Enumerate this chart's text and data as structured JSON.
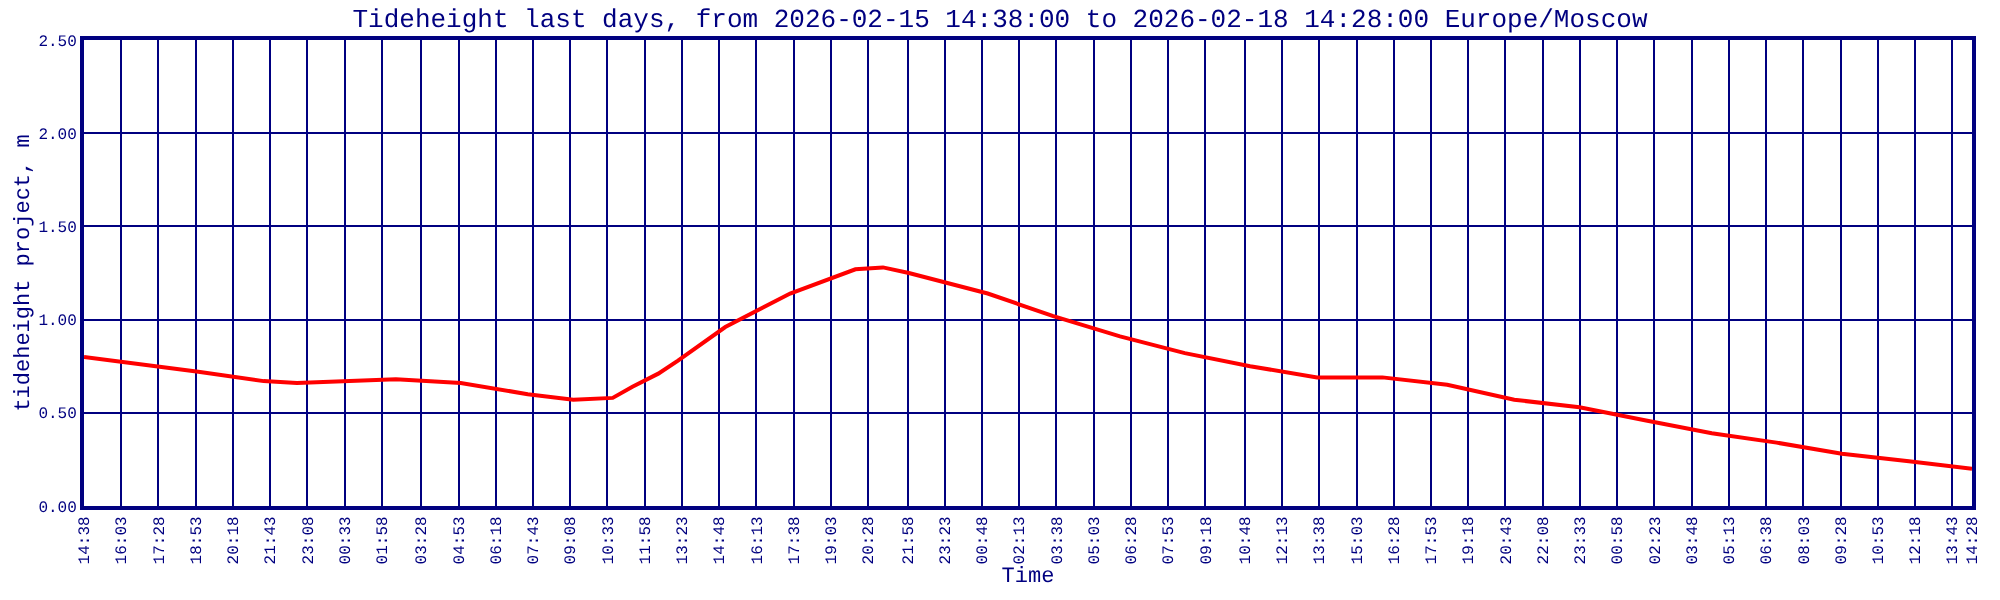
{
  "chart_data": {
    "type": "line",
    "title": "Tideheight last days, from 2026-02-15 14:38:00 to 2026-02-18 14:28:00 Europe/Moscow",
    "xlabel": "Time",
    "ylabel": "tideheight project, m",
    "x": [
      "2026-02-15T14:38",
      "2026-02-15T18:59",
      "2026-02-15T21:28",
      "2026-02-15T22:44",
      "2026-02-16T02:30",
      "2026-02-16T04:58",
      "2026-02-16T07:31",
      "2026-02-16T09:15",
      "2026-02-16T10:45",
      "2026-02-16T11:30",
      "2026-02-16T12:29",
      "2026-02-16T13:14",
      "2026-02-16T15:02",
      "2026-02-16T17:30",
      "2026-02-16T19:59",
      "2026-02-16T21:02",
      "2026-02-16T22:01",
      "2026-02-17T01:01",
      "2026-02-17T03:29",
      "2026-02-17T06:03",
      "2026-02-17T08:31",
      "2026-02-17T11:00",
      "2026-02-17T13:33",
      "2026-02-17T16:02",
      "2026-02-17T18:30",
      "2026-02-17T21:03",
      "2026-02-17T23:32",
      "2026-02-18T02:01",
      "2026-02-18T04:34",
      "2026-02-18T07:02",
      "2026-02-18T09:31",
      "2026-02-18T12:04",
      "2026-02-18T14:28"
    ],
    "series": [
      {
        "color": "#ff0000",
        "values": [
          0.8,
          0.72,
          0.67,
          0.66,
          0.68,
          0.66,
          0.6,
          0.57,
          0.58,
          0.64,
          0.71,
          0.78,
          0.96,
          1.14,
          1.27,
          1.28,
          1.25,
          1.14,
          1.02,
          0.91,
          0.82,
          0.75,
          0.69,
          0.69,
          0.65,
          0.57,
          0.53,
          0.46,
          0.39,
          0.34,
          0.28,
          0.24,
          0.2
        ]
      }
    ],
    "xlim": [
      "2026-02-15T14:38",
      "2026-02-18T14:28"
    ],
    "xticks": [
      {
        "value": "2026-02-15T14:38",
        "label": "14:38"
      },
      {
        "value": "2026-02-15T16:03",
        "label": "16:03"
      },
      {
        "value": "2026-02-15T17:28",
        "label": "17:28"
      },
      {
        "value": "2026-02-15T18:53",
        "label": "18:53"
      },
      {
        "value": "2026-02-15T20:18",
        "label": "20:18"
      },
      {
        "value": "2026-02-15T21:43",
        "label": "21:43"
      },
      {
        "value": "2026-02-15T23:08",
        "label": "23:08"
      },
      {
        "value": "2026-02-16T00:33",
        "label": "00:33"
      },
      {
        "value": "2026-02-16T01:58",
        "label": "01:58"
      },
      {
        "value": "2026-02-16T03:28",
        "label": "03:28"
      },
      {
        "value": "2026-02-16T04:53",
        "label": "04:53"
      },
      {
        "value": "2026-02-16T06:18",
        "label": "06:18"
      },
      {
        "value": "2026-02-16T07:43",
        "label": "07:43"
      },
      {
        "value": "2026-02-16T09:08",
        "label": "09:08"
      },
      {
        "value": "2026-02-16T10:33",
        "label": "10:33"
      },
      {
        "value": "2026-02-16T11:58",
        "label": "11:58"
      },
      {
        "value": "2026-02-16T13:23",
        "label": "13:23"
      },
      {
        "value": "2026-02-16T14:48",
        "label": "14:48"
      },
      {
        "value": "2026-02-16T16:13",
        "label": "16:13"
      },
      {
        "value": "2026-02-16T17:38",
        "label": "17:38"
      },
      {
        "value": "2026-02-16T19:03",
        "label": "19:03"
      },
      {
        "value": "2026-02-16T20:28",
        "label": "20:28"
      },
      {
        "value": "2026-02-16T21:58",
        "label": "21:58"
      },
      {
        "value": "2026-02-16T23:23",
        "label": "23:23"
      },
      {
        "value": "2026-02-17T00:48",
        "label": "00:48"
      },
      {
        "value": "2026-02-17T02:13",
        "label": "02:13"
      },
      {
        "value": "2026-02-17T03:38",
        "label": "03:38"
      },
      {
        "value": "2026-02-17T05:03",
        "label": "05:03"
      },
      {
        "value": "2026-02-17T06:28",
        "label": "06:28"
      },
      {
        "value": "2026-02-17T07:53",
        "label": "07:53"
      },
      {
        "value": "2026-02-17T09:18",
        "label": "09:18"
      },
      {
        "value": "2026-02-17T10:48",
        "label": "10:48"
      },
      {
        "value": "2026-02-17T12:13",
        "label": "12:13"
      },
      {
        "value": "2026-02-17T13:38",
        "label": "13:38"
      },
      {
        "value": "2026-02-17T15:03",
        "label": "15:03"
      },
      {
        "value": "2026-02-17T16:28",
        "label": "16:28"
      },
      {
        "value": "2026-02-17T17:53",
        "label": "17:53"
      },
      {
        "value": "2026-02-17T19:18",
        "label": "19:18"
      },
      {
        "value": "2026-02-17T20:43",
        "label": "20:43"
      },
      {
        "value": "2026-02-17T22:08",
        "label": "22:08"
      },
      {
        "value": "2026-02-17T23:33",
        "label": "23:33"
      },
      {
        "value": "2026-02-18T00:58",
        "label": "00:58"
      },
      {
        "value": "2026-02-18T02:23",
        "label": "02:23"
      },
      {
        "value": "2026-02-18T03:48",
        "label": "03:48"
      },
      {
        "value": "2026-02-18T05:13",
        "label": "05:13"
      },
      {
        "value": "2026-02-18T06:38",
        "label": "06:38"
      },
      {
        "value": "2026-02-18T08:03",
        "label": "08:03"
      },
      {
        "value": "2026-02-18T09:28",
        "label": "09:28"
      },
      {
        "value": "2026-02-18T10:53",
        "label": "10:53"
      },
      {
        "value": "2026-02-18T12:18",
        "label": "12:18"
      },
      {
        "value": "2026-02-18T13:43",
        "label": "13:43"
      },
      {
        "value": "2026-02-18T14:28",
        "label": "14:28"
      }
    ],
    "ylim": [
      0,
      2.5
    ],
    "yticks": [
      {
        "value": 0,
        "label": "0.00"
      },
      {
        "value": 0.5,
        "label": "0.50"
      },
      {
        "value": 1,
        "label": "1.00"
      },
      {
        "value": 1.5,
        "label": "1.50"
      },
      {
        "value": 2,
        "label": "2.00"
      },
      {
        "value": 2.5,
        "label": "2.50"
      }
    ],
    "grid": true,
    "line_style": "solid",
    "marker": "none"
  }
}
